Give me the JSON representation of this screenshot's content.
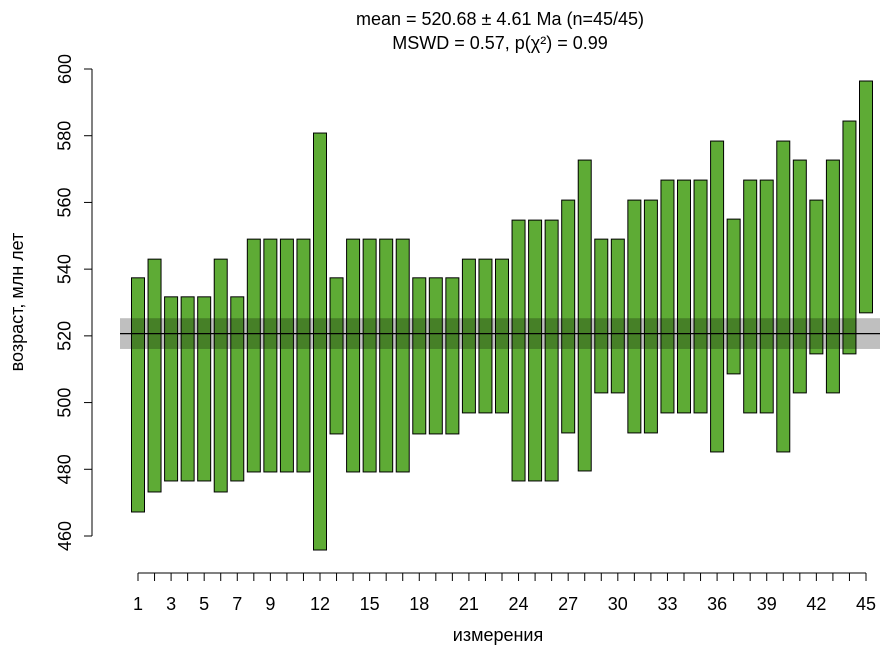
{
  "chart_data": {
    "type": "interval",
    "title": "mean = 520.68 ± 4.61 Ma (n=45/45)",
    "subtitle": "MSWD = 0.57, p(χ²) = 0.99",
    "x_label": "измерения",
    "y_label": "возраст, млн лет",
    "x": [
      1,
      2,
      3,
      4,
      5,
      6,
      7,
      8,
      9,
      10,
      11,
      12,
      13,
      14,
      15,
      16,
      17,
      18,
      19,
      20,
      21,
      22,
      23,
      24,
      25,
      26,
      27,
      28,
      29,
      30,
      31,
      32,
      33,
      34,
      35,
      36,
      37,
      38,
      39,
      40,
      41,
      42,
      43,
      44,
      45
    ],
    "lower": [
      467.2,
      473.2,
      476.5,
      476.5,
      476.5,
      473.2,
      476.5,
      479.2,
      479.2,
      479.2,
      479.2,
      455.8,
      490.6,
      479.2,
      479.2,
      479.2,
      479.2,
      490.6,
      490.6,
      490.6,
      496.9,
      496.9,
      496.9,
      476.5,
      476.5,
      476.5,
      490.9,
      479.5,
      502.9,
      502.9,
      490.9,
      490.9,
      496.9,
      496.9,
      496.9,
      485.2,
      508.6,
      496.9,
      496.9,
      485.2,
      502.9,
      514.6,
      502.9,
      514.6,
      526.9
    ],
    "upper": [
      537.4,
      543,
      531.7,
      531.7,
      531.7,
      543,
      531.7,
      549,
      549,
      549,
      549,
      580.8,
      537.4,
      549,
      549,
      549,
      549,
      537.4,
      537.4,
      537.4,
      543,
      543,
      543,
      554.7,
      554.7,
      554.7,
      560.7,
      572.7,
      549,
      549,
      560.7,
      560.7,
      566.7,
      566.7,
      566.7,
      578.4,
      555,
      566.7,
      566.7,
      578.4,
      572.7,
      560.7,
      572.7,
      584.4,
      596.4
    ],
    "color": "#5eab35",
    "mean": 520.68,
    "error": 4.61,
    "band_color": "#000000",
    "xlim": [
      1,
      45
    ],
    "xticks": [
      1,
      3,
      5,
      7,
      9,
      12,
      15,
      18,
      21,
      24,
      27,
      30,
      33,
      36,
      39,
      42,
      45
    ],
    "ylim": [
      460,
      600
    ],
    "yticks": [
      460,
      480,
      500,
      520,
      540,
      560,
      580,
      600
    ]
  }
}
